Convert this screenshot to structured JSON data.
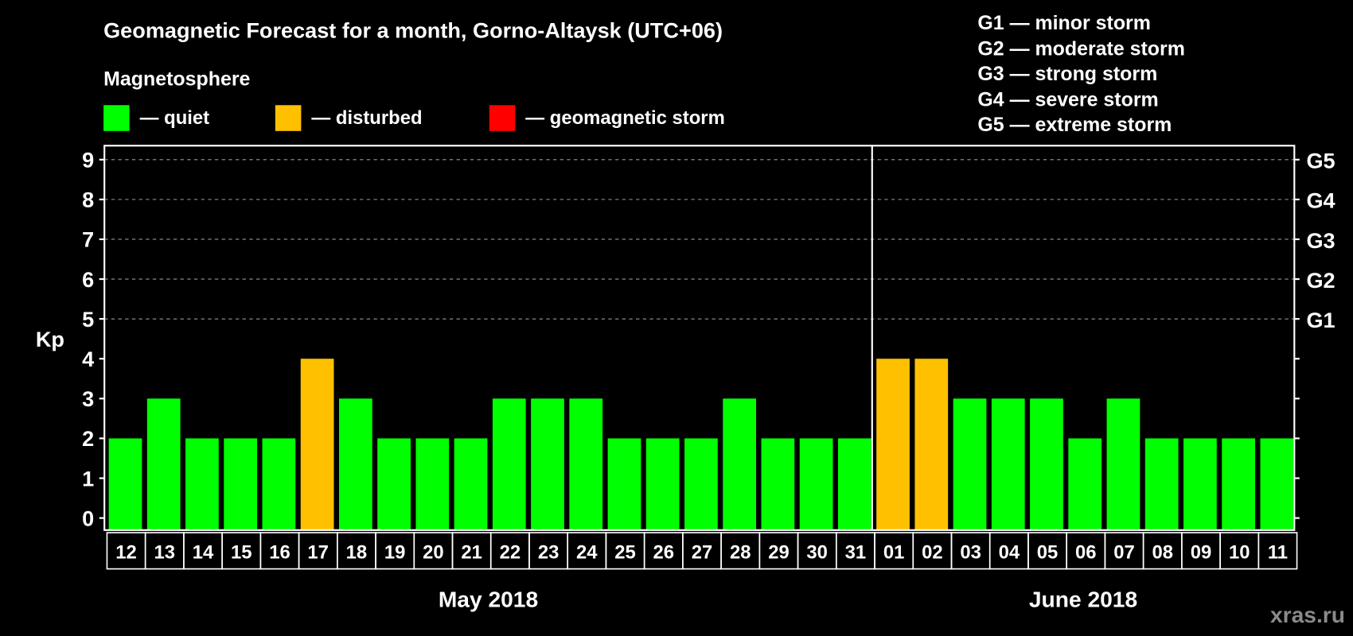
{
  "title": "Geomagnetic Forecast for a month, Gorno-Altaysk (UTC+06)",
  "legend": {
    "heading": "Magnetosphere",
    "items": [
      {
        "label": "— quiet",
        "color": "#00ff00"
      },
      {
        "label": "— disturbed",
        "color": "#ffc000"
      },
      {
        "label": "— geomagnetic storm",
        "color": "#ff0000"
      }
    ]
  },
  "storm_scale": [
    "G1 — minor storm",
    "G2 — moderate storm",
    "G3 — strong storm",
    "G4 — severe storm",
    "G5 — extreme storm"
  ],
  "watermark": "xras.ru",
  "chart_data": {
    "type": "bar",
    "title": "Geomagnetic Forecast for a month, Gorno-Altaysk (UTC+06)",
    "ylabel": "Kp",
    "ylim": [
      0,
      9
    ],
    "yticks": [
      "0",
      "1",
      "2",
      "3",
      "4",
      "5",
      "6",
      "7",
      "8",
      "9"
    ],
    "right_ticks": [
      {
        "kp": 5,
        "label": "G1"
      },
      {
        "kp": 6,
        "label": "G2"
      },
      {
        "kp": 7,
        "label": "G3"
      },
      {
        "kp": 8,
        "label": "G4"
      },
      {
        "kp": 9,
        "label": "G5"
      }
    ],
    "grid": "dashed horizontal at Kp 5-9",
    "categories": [
      "12",
      "13",
      "14",
      "15",
      "16",
      "17",
      "18",
      "19",
      "20",
      "21",
      "22",
      "23",
      "24",
      "25",
      "26",
      "27",
      "28",
      "29",
      "30",
      "31",
      "01",
      "02",
      "03",
      "04",
      "05",
      "06",
      "07",
      "08",
      "09",
      "10",
      "11"
    ],
    "values": [
      2,
      3,
      2,
      2,
      2,
      4,
      3,
      2,
      2,
      2,
      3,
      3,
      3,
      2,
      2,
      2,
      3,
      2,
      2,
      2,
      4,
      4,
      3,
      3,
      3,
      2,
      3,
      2,
      2,
      2,
      2
    ],
    "months": [
      {
        "label": "May 2018",
        "days": 20
      },
      {
        "label": "June 2018",
        "days": 11
      }
    ]
  }
}
